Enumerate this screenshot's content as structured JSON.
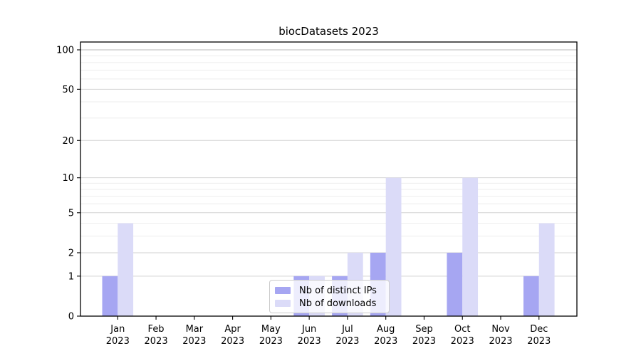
{
  "chart_data": {
    "type": "bar",
    "title": "biocDatasets 2023",
    "categories": [
      {
        "month": "Jan",
        "year": "2023"
      },
      {
        "month": "Feb",
        "year": "2023"
      },
      {
        "month": "Mar",
        "year": "2023"
      },
      {
        "month": "Apr",
        "year": "2023"
      },
      {
        "month": "May",
        "year": "2023"
      },
      {
        "month": "Jun",
        "year": "2023"
      },
      {
        "month": "Jul",
        "year": "2023"
      },
      {
        "month": "Aug",
        "year": "2023"
      },
      {
        "month": "Sep",
        "year": "2023"
      },
      {
        "month": "Oct",
        "year": "2023"
      },
      {
        "month": "Nov",
        "year": "2023"
      },
      {
        "month": "Dec",
        "year": "2023"
      }
    ],
    "series": [
      {
        "name": "Nb of distinct IPs",
        "color": "#a6a6f2",
        "values": [
          1,
          0,
          0,
          0,
          0,
          1,
          1,
          2,
          0,
          2,
          0,
          1
        ]
      },
      {
        "name": "Nb of downloads",
        "color": "#dbdbf8",
        "values": [
          4,
          0,
          0,
          0,
          0,
          1,
          2,
          10,
          0,
          10,
          0,
          4
        ]
      }
    ],
    "xlabel": "",
    "ylabel": "",
    "yscale": "log1p",
    "ylim": [
      0,
      115
    ],
    "yticks": [
      0,
      1,
      2,
      5,
      10,
      20,
      50,
      100
    ],
    "yticks_minor": [
      3,
      4,
      6,
      7,
      8,
      9,
      30,
      40,
      60,
      70,
      80,
      90
    ],
    "grid": "both",
    "legend_position": "lower center"
  },
  "colors": {
    "major_grid": "#d2d2d2",
    "top_grid": "#b9b9b9",
    "minor_grid": "#ededed",
    "spine": "#000000",
    "tick_text": "#000000"
  }
}
